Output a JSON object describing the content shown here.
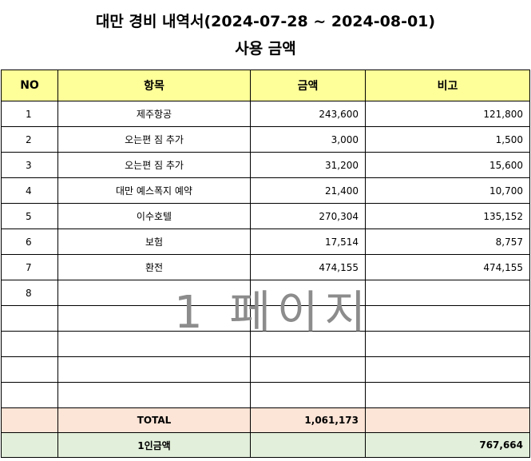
{
  "title": "대만 경비 내역서(2024-07-28 ~ 2024-08-01)",
  "subtitle": "사용 금액",
  "headers": [
    "NO",
    "항목",
    "금액",
    "비고"
  ],
  "rows": [
    {
      "no": "1",
      "item": "제주항공",
      "amount": "243,600",
      "note": "121,800"
    },
    {
      "no": "2",
      "item": "오는편 짐 추가",
      "amount": "3,000",
      "note": "1,500"
    },
    {
      "no": "3",
      "item": "오는편 짐 추가",
      "amount": "31,200",
      "note": "15,600"
    },
    {
      "no": "4",
      "item": "대만 예스폭지 예약",
      "amount": "21,400",
      "note": "10,700"
    },
    {
      "no": "5",
      "item": "이수호텔",
      "amount": "270,304",
      "note": "135,152"
    },
    {
      "no": "6",
      "item": "보험",
      "amount": "17,514",
      "note": "8,757"
    },
    {
      "no": "7",
      "item": "환전",
      "amount": "474,155",
      "note": "474,155"
    },
    {
      "no": "8",
      "item": "",
      "amount": "",
      "note": ""
    },
    {
      "no": "",
      "item": "",
      "amount": "",
      "note": ""
    },
    {
      "no": "",
      "item": "",
      "amount": "",
      "note": ""
    },
    {
      "no": "",
      "item": "",
      "amount": "",
      "note": ""
    },
    {
      "no": "",
      "item": "",
      "amount": "",
      "note": ""
    }
  ],
  "total": {
    "label": "TOTAL",
    "amount": "1,061,173"
  },
  "per_person": {
    "label": "1인금액",
    "amount": "767,664"
  },
  "watermark": "1 페이지",
  "colors": {
    "header_bg": "#ffff99",
    "total_bg": "#fce4d6",
    "per_person_bg": "#e2efda"
  }
}
